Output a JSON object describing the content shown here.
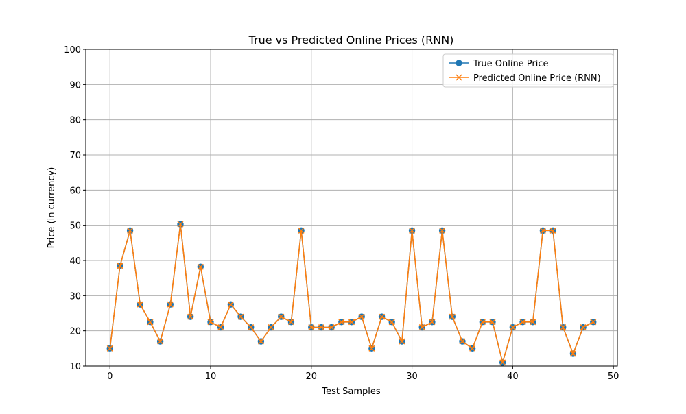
{
  "chart_data": {
    "type": "line",
    "title": "True vs Predicted Online Prices (RNN)",
    "xlabel": "Test Samples",
    "ylabel": "Price (in currency)",
    "xlim": [
      -2.4,
      50.4
    ],
    "ylim": [
      10,
      100
    ],
    "xticks": [
      0,
      10,
      20,
      30,
      40,
      50
    ],
    "yticks": [
      10,
      20,
      30,
      40,
      50,
      60,
      70,
      80,
      90,
      100
    ],
    "grid": true,
    "legend_position": "top-right",
    "x": [
      0,
      1,
      2,
      3,
      4,
      5,
      6,
      7,
      8,
      9,
      10,
      11,
      12,
      13,
      14,
      15,
      16,
      17,
      18,
      19,
      20,
      21,
      22,
      23,
      24,
      25,
      26,
      27,
      28,
      29,
      30,
      31,
      32,
      33,
      34,
      35,
      36,
      37,
      38,
      39,
      40,
      41,
      42,
      43,
      44,
      45,
      46,
      47,
      48
    ],
    "series": [
      {
        "name": "True Online Price",
        "color": "#1f77b4",
        "marker": "circle",
        "values": [
          15,
          38.5,
          48.5,
          27.5,
          22.5,
          17,
          27.5,
          50.3,
          24,
          38.2,
          22.5,
          21,
          27.5,
          24,
          21,
          17,
          21,
          24,
          22.5,
          48.5,
          21,
          21,
          21,
          22.5,
          22.5,
          24,
          15,
          24,
          22.5,
          17,
          48.5,
          21,
          22.5,
          48.5,
          24,
          17,
          15,
          22.5,
          22.5,
          11,
          21,
          22.5,
          22.5,
          48.5,
          48.5,
          21,
          13.5,
          21,
          22.5
        ]
      },
      {
        "name": "Predicted Online Price (RNN)",
        "color": "#ff7f0e",
        "marker": "x",
        "values": [
          15,
          38.5,
          48.5,
          27.5,
          22.5,
          17,
          27.5,
          50.3,
          24,
          38.2,
          22.5,
          21,
          27.5,
          24,
          21,
          17,
          21,
          24,
          22.5,
          48.5,
          21,
          21,
          21,
          22.5,
          22.5,
          24,
          15,
          24,
          22.5,
          17,
          48.5,
          21,
          22.5,
          48.5,
          24,
          17,
          15,
          22.5,
          22.5,
          11,
          21,
          22.5,
          22.5,
          48.5,
          48.5,
          21,
          13.5,
          21,
          22.5
        ]
      }
    ]
  }
}
